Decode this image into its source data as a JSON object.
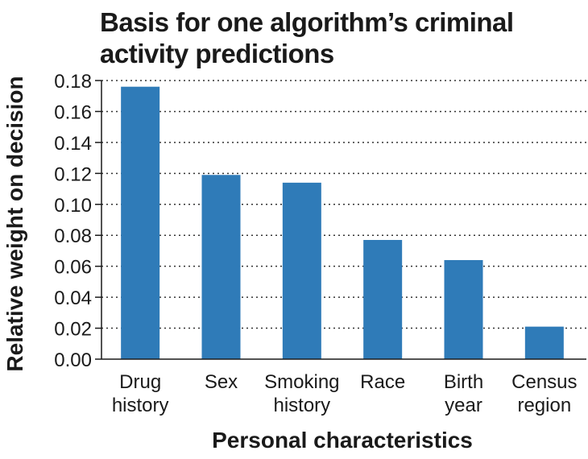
{
  "chart_data": {
    "type": "bar",
    "title": "Basis for one algorithm’s criminal activity predictions",
    "xlabel": "Personal characteristics",
    "ylabel": "Relative weight on decision",
    "categories": [
      [
        "Drug",
        "history"
      ],
      [
        "Sex"
      ],
      [
        "Smoking",
        "history"
      ],
      [
        "Race"
      ],
      [
        "Birth",
        "year"
      ],
      [
        "Census",
        "region"
      ]
    ],
    "values": [
      0.176,
      0.119,
      0.114,
      0.077,
      0.064,
      0.021
    ],
    "ylim": [
      0,
      0.18
    ],
    "yticks": [
      "0.00",
      "0.02",
      "0.04",
      "0.06",
      "0.08",
      "0.10",
      "0.12",
      "0.14",
      "0.16",
      "0.18"
    ],
    "grid": "horizontal-dotted",
    "bar_color": "#2f7bb8"
  }
}
